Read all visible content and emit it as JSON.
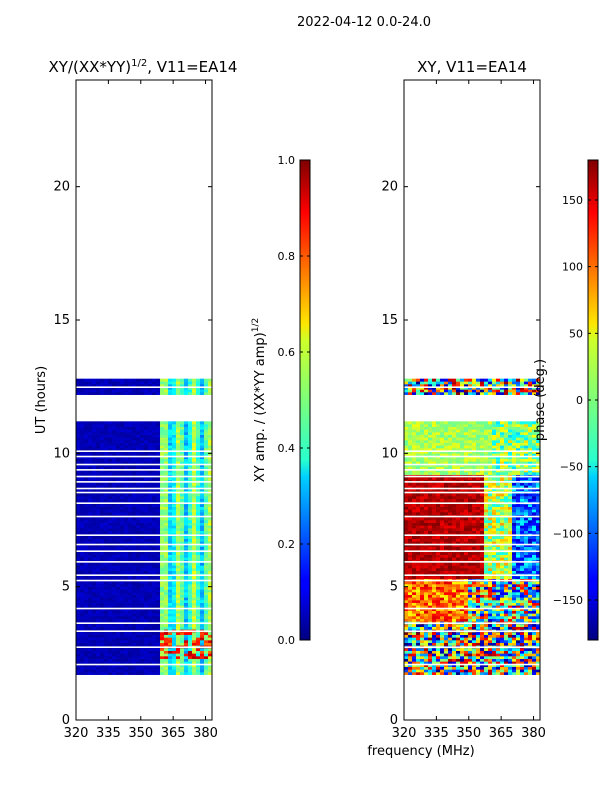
{
  "figure": {
    "suptitle": "2022-04-12 0.0-24.0",
    "xlabel": "frequency (MHz)"
  },
  "chart_data": [
    {
      "type": "heatmap",
      "title_main": "XY/(XX*YY)",
      "title_exp": "1/2",
      "title_tail": ", V11=EA14",
      "ylabel": "UT (hours)",
      "xlim": [
        320,
        383
      ],
      "ylim": [
        0,
        24
      ],
      "xticks": [
        320,
        335,
        350,
        365,
        380
      ],
      "yticks": [
        0,
        5,
        10,
        15,
        20
      ],
      "colorbar": {
        "label_main": "XY amp. / (XX*YY amp)",
        "label_exp": "1/2",
        "range": [
          0,
          1
        ],
        "ticks": [
          "0.0",
          "0.2",
          "0.4",
          "0.6",
          "0.8",
          "1.0"
        ],
        "tick_values": [
          0,
          0.2,
          0.4,
          0.6,
          0.8,
          1.0
        ]
      }
    },
    {
      "type": "heatmap",
      "title": "XY, V11=EA14",
      "xlim": [
        320,
        383
      ],
      "ylim": [
        0,
        24
      ],
      "xticks": [
        320,
        335,
        350,
        365,
        380
      ],
      "yticks": [
        0,
        5,
        10,
        15,
        20
      ],
      "colorbar": {
        "label": "phase (deg.)",
        "range": [
          -180,
          180
        ],
        "ticks": [
          "−150",
          "−100",
          "−50",
          "0",
          "50",
          "100",
          "150"
        ],
        "tick_values": [
          -150,
          -100,
          -50,
          0,
          50,
          100,
          150
        ]
      }
    }
  ],
  "data_coverage": {
    "segments_hours": [
      [
        1.7,
        11.2
      ],
      [
        12.2,
        12.75
      ]
    ],
    "gap_hours": [
      2.05,
      2.7,
      3.3,
      3.6,
      4.15,
      5.2,
      5.4,
      5.9,
      6.3,
      6.55,
      6.9,
      7.6,
      8.1,
      8.5,
      8.65,
      8.9,
      9.1,
      9.35,
      9.55,
      9.85,
      10.05,
      12.45
    ]
  }
}
